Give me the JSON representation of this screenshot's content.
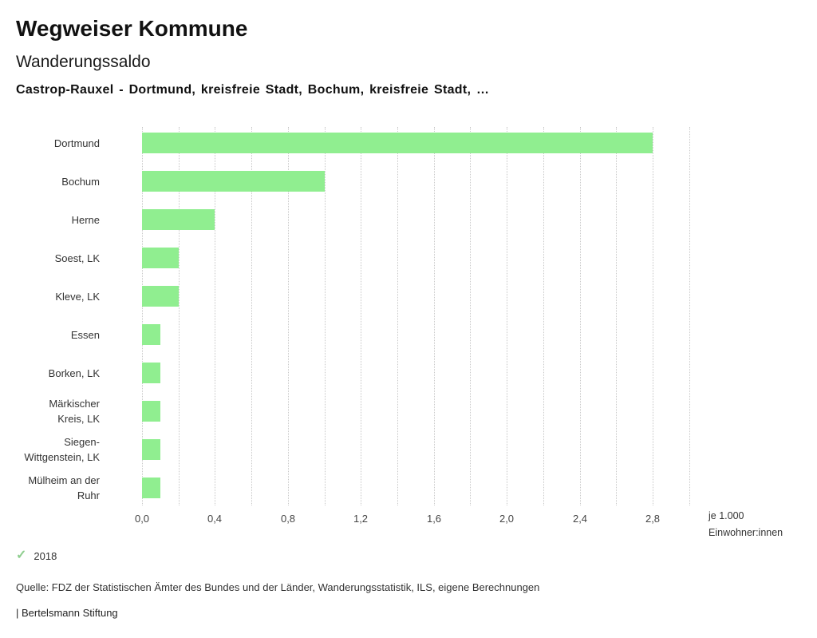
{
  "header": {
    "title": "Wegweiser Kommune",
    "subtitle": "Wanderungssaldo",
    "selection": "Castrop-Rauxel - Dortmund, kreisfreie Stadt, Bochum, kreisfreie Stadt, …"
  },
  "chart_data": {
    "type": "bar",
    "orientation": "horizontal",
    "title": "Wanderungssaldo",
    "categories": [
      "Dortmund",
      "Bochum",
      "Herne",
      "Soest, LK",
      "Kleve, LK",
      "Essen",
      "Borken, LK",
      "Märkischer Kreis, LK",
      "Siegen-Wittgenstein, LK",
      "Mülheim an der Ruhr"
    ],
    "values": [
      2.8,
      1.0,
      0.4,
      0.2,
      0.2,
      0.1,
      0.1,
      0.1,
      0.1,
      0.1
    ],
    "series_name": "2018",
    "xlim": [
      0,
      3.0
    ],
    "grid_step": 0.2,
    "xticks": [
      0.0,
      0.4,
      0.8,
      1.2,
      1.6,
      2.0,
      2.4,
      2.8
    ],
    "xtick_labels": [
      "0,0",
      "0,4",
      "0,8",
      "1,2",
      "1,6",
      "2,0",
      "2,4",
      "2,8"
    ],
    "unit_line1": "je 1.000",
    "unit_line2": "Einwohner:innen",
    "bar_color": "#90ee90",
    "grid": true,
    "legend_position": "bottom-left"
  },
  "legend": {
    "check_icon": "✓",
    "check_color": "#8fce8f",
    "label": "2018"
  },
  "footer": {
    "source": "Quelle: FDZ der Statistischen Ämter des Bundes und der Länder, Wanderungsstatistik, ILS, eigene Berechnungen",
    "branding": "| Bertelsmann Stiftung"
  }
}
